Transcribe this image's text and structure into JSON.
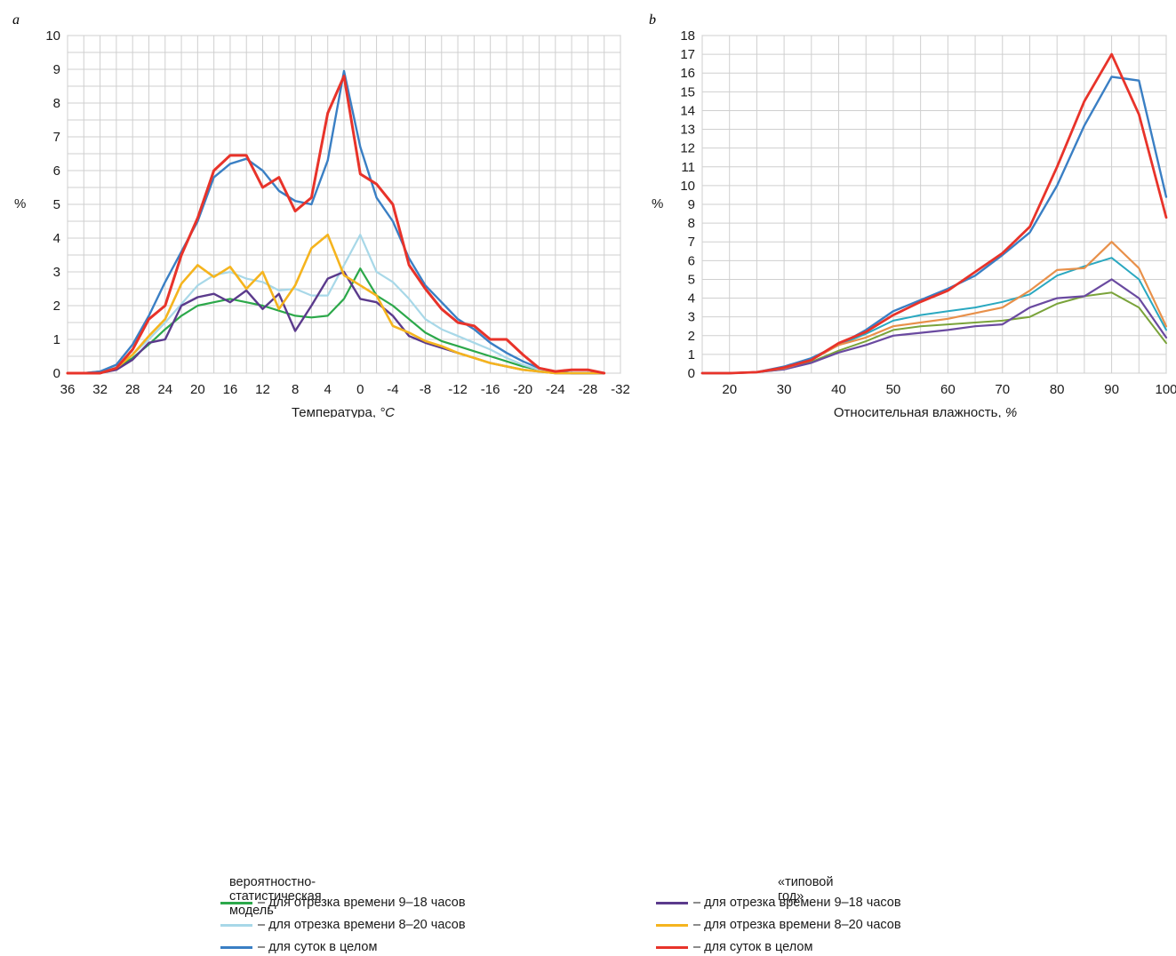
{
  "chart_data": [
    {
      "panel": "a",
      "type": "line",
      "xlabel": "Температура, ",
      "xlabel_unit": "°C",
      "ylabel": "%",
      "xlim": [
        36,
        -32
      ],
      "ylim": [
        0,
        10
      ],
      "x_ticks": [
        "36",
        "32",
        "28",
        "24",
        "20",
        "16",
        "12",
        "8",
        "4",
        "0",
        "-4",
        "-8",
        "-12",
        "-16",
        "-20",
        "-24",
        "-28",
        "-32"
      ],
      "y_ticks": [
        "0",
        "1",
        "2",
        "3",
        "4",
        "5",
        "6",
        "7",
        "8",
        "9",
        "10"
      ],
      "grid": true,
      "series": [
        {
          "name": "вероятностно-статистическая модель – для отрезка времени 9–18 часов",
          "color": "#2ca84a",
          "x": [
            36,
            34,
            32,
            30,
            28,
            26,
            24,
            22,
            20,
            18,
            16,
            14,
            12,
            10,
            8,
            6,
            4,
            2,
            0,
            -2,
            -4,
            -6,
            -8,
            -10,
            -12,
            -14,
            -16,
            -18,
            -20,
            -22,
            -24,
            -26,
            -28,
            -30
          ],
          "y": [
            0,
            0,
            0.05,
            0.15,
            0.45,
            0.85,
            1.3,
            1.7,
            2.0,
            2.1,
            2.2,
            2.1,
            2.0,
            1.85,
            1.7,
            1.65,
            1.7,
            2.2,
            3.1,
            2.3,
            2.0,
            1.6,
            1.2,
            0.95,
            0.8,
            0.65,
            0.5,
            0.35,
            0.2,
            0.1,
            0.05,
            0,
            0,
            0
          ]
        },
        {
          "name": "вероятностно-статистическая модель – для отрезка времени 8–20 часов",
          "color": "#a8d8e8",
          "x": [
            36,
            34,
            32,
            30,
            28,
            26,
            24,
            22,
            20,
            18,
            16,
            14,
            12,
            10,
            8,
            6,
            4,
            2,
            0,
            -2,
            -4,
            -6,
            -8,
            -10,
            -12,
            -14,
            -16,
            -18,
            -20,
            -22,
            -24,
            -26,
            -28,
            -30
          ],
          "y": [
            0,
            0,
            0.05,
            0.2,
            0.55,
            1.0,
            1.5,
            2.05,
            2.6,
            2.9,
            3.0,
            2.8,
            2.7,
            2.45,
            2.5,
            2.3,
            2.3,
            3.2,
            4.1,
            3.0,
            2.7,
            2.2,
            1.6,
            1.3,
            1.1,
            0.9,
            0.7,
            0.45,
            0.25,
            0.1,
            0.05,
            0,
            0,
            0
          ]
        },
        {
          "name": "вероятностно-статистическая модель – для суток в целом",
          "color": "#3a7fc4",
          "x": [
            36,
            34,
            32,
            30,
            28,
            26,
            24,
            22,
            20,
            18,
            16,
            14,
            12,
            10,
            8,
            6,
            4,
            2,
            0,
            -2,
            -4,
            -6,
            -8,
            -10,
            -12,
            -14,
            -16,
            -18,
            -20,
            -22,
            -24,
            -26,
            -28,
            -30
          ],
          "y": [
            0,
            0,
            0.05,
            0.25,
            0.85,
            1.7,
            2.7,
            3.6,
            4.5,
            5.8,
            6.2,
            6.35,
            6.0,
            5.4,
            5.1,
            5.0,
            6.3,
            8.95,
            6.7,
            5.2,
            4.5,
            3.4,
            2.6,
            2.1,
            1.6,
            1.3,
            0.9,
            0.6,
            0.35,
            0.15,
            0.05,
            0,
            0,
            0
          ]
        },
        {
          "name": "«типовой год» – для отрезка времени 9–18 часов",
          "color": "#5b3a8c",
          "x": [
            36,
            34,
            32,
            30,
            28,
            26,
            24,
            22,
            20,
            18,
            16,
            14,
            12,
            10,
            8,
            6,
            4,
            2,
            0,
            -2,
            -4,
            -6,
            -8,
            -10,
            -12,
            -14,
            -16,
            -18,
            -20,
            -22,
            -24,
            -26,
            -28,
            -30
          ],
          "y": [
            0,
            0,
            0,
            0.1,
            0.4,
            0.9,
            1.0,
            2.0,
            2.25,
            2.35,
            2.1,
            2.45,
            1.9,
            2.35,
            1.25,
            2.0,
            2.8,
            3.0,
            2.2,
            2.1,
            1.7,
            1.1,
            0.9,
            0.75,
            0.6,
            0.45,
            0.3,
            0.2,
            0.1,
            0.05,
            0,
            0,
            0,
            0
          ]
        },
        {
          "name": "«типовой год» – для отрезка времени 8–20 часов",
          "color": "#f5b41e",
          "x": [
            36,
            34,
            32,
            30,
            28,
            26,
            24,
            22,
            20,
            18,
            16,
            14,
            12,
            10,
            8,
            6,
            4,
            2,
            0,
            -2,
            -4,
            -6,
            -8,
            -10,
            -12,
            -14,
            -16,
            -18,
            -20,
            -22,
            -24,
            -26,
            -28,
            -30
          ],
          "y": [
            0,
            0,
            0,
            0.15,
            0.55,
            1.1,
            1.6,
            2.65,
            3.2,
            2.85,
            3.15,
            2.5,
            3.0,
            1.9,
            2.6,
            3.7,
            4.1,
            2.9,
            2.6,
            2.3,
            1.4,
            1.2,
            0.95,
            0.8,
            0.6,
            0.45,
            0.3,
            0.2,
            0.1,
            0.05,
            0,
            0,
            0,
            0
          ]
        },
        {
          "name": "«типовой год» – для суток в целом",
          "color": "#e8332a",
          "x": [
            36,
            34,
            32,
            30,
            28,
            26,
            24,
            22,
            20,
            18,
            16,
            14,
            12,
            10,
            8,
            6,
            4,
            2,
            0,
            -2,
            -4,
            -6,
            -8,
            -10,
            -12,
            -14,
            -16,
            -18,
            -20,
            -22,
            -24,
            -26,
            -28,
            -30
          ],
          "y": [
            0,
            0,
            0,
            0.15,
            0.7,
            1.6,
            2.0,
            3.5,
            4.6,
            6.0,
            6.45,
            6.45,
            5.5,
            5.8,
            4.8,
            5.2,
            7.7,
            8.8,
            5.9,
            5.6,
            5.0,
            3.2,
            2.5,
            1.9,
            1.5,
            1.4,
            1.0,
            1.0,
            0.55,
            0.15,
            0.05,
            0.1,
            0.1,
            0
          ]
        }
      ]
    },
    {
      "panel": "b",
      "type": "line",
      "xlabel": "Относительная влажность, ",
      "xlabel_unit": "%",
      "ylabel": "%",
      "xlim": [
        15,
        100
      ],
      "ylim": [
        0,
        18
      ],
      "x_ticks": [
        "20",
        "30",
        "40",
        "50",
        "60",
        "70",
        "80",
        "90",
        "100"
      ],
      "y_ticks": [
        "0",
        "1",
        "2",
        "3",
        "4",
        "5",
        "6",
        "7",
        "8",
        "9",
        "10",
        "11",
        "12",
        "13",
        "14",
        "15",
        "16",
        "17",
        "18"
      ],
      "grid": true,
      "series": [
        {
          "name": "вероятностно-статистическая модель – для отрезка времени 9–18 часов",
          "color": "#7aa33a",
          "x": [
            15,
            20,
            25,
            30,
            35,
            40,
            45,
            50,
            55,
            60,
            65,
            70,
            75,
            80,
            85,
            90,
            95,
            100
          ],
          "y": [
            0,
            0,
            0.05,
            0.2,
            0.6,
            1.2,
            1.7,
            2.3,
            2.5,
            2.6,
            2.7,
            2.8,
            3.0,
            3.7,
            4.1,
            4.3,
            3.5,
            1.6
          ]
        },
        {
          "name": "вероятностно-статистическая модель – для отрезка времени 8–20 часов",
          "color": "#2aa8c0",
          "x": [
            15,
            20,
            25,
            30,
            35,
            40,
            45,
            50,
            55,
            60,
            65,
            70,
            75,
            80,
            85,
            90,
            95,
            100
          ],
          "y": [
            0,
            0,
            0.05,
            0.25,
            0.7,
            1.5,
            2.1,
            2.8,
            3.1,
            3.3,
            3.5,
            3.8,
            4.2,
            5.2,
            5.7,
            6.15,
            5.0,
            2.3
          ]
        },
        {
          "name": "вероятностно-статистическая модель – для суток в целом",
          "color": "#3a7fc4",
          "x": [
            15,
            20,
            25,
            30,
            35,
            40,
            45,
            50,
            55,
            60,
            65,
            70,
            75,
            80,
            85,
            90,
            95,
            100
          ],
          "y": [
            0,
            0,
            0.05,
            0.35,
            0.8,
            1.5,
            2.3,
            3.3,
            3.9,
            4.5,
            5.2,
            6.3,
            7.5,
            10.0,
            13.2,
            15.8,
            15.6,
            9.4
          ]
        },
        {
          "name": "«типовой год» – для отрезка времени 9–18 часов",
          "color": "#6a4aa0",
          "x": [
            15,
            20,
            25,
            30,
            35,
            40,
            45,
            50,
            55,
            60,
            65,
            70,
            75,
            80,
            85,
            90,
            95,
            100
          ],
          "y": [
            0,
            0,
            0.05,
            0.2,
            0.55,
            1.1,
            1.5,
            2.0,
            2.15,
            2.3,
            2.5,
            2.6,
            3.5,
            4.0,
            4.1,
            5.0,
            4.0,
            1.9
          ]
        },
        {
          "name": "«типовой год» – для отрезка времени 8–20 часов",
          "color": "#e8904a",
          "x": [
            15,
            20,
            25,
            30,
            35,
            40,
            45,
            50,
            55,
            60,
            65,
            70,
            75,
            80,
            85,
            90,
            95,
            100
          ],
          "y": [
            0,
            0,
            0.05,
            0.25,
            0.7,
            1.5,
            1.9,
            2.5,
            2.7,
            2.9,
            3.2,
            3.5,
            4.4,
            5.5,
            5.6,
            7.0,
            5.6,
            2.5
          ]
        },
        {
          "name": "«типовой год» – для суток в целом",
          "color": "#e8332a",
          "x": [
            15,
            20,
            25,
            30,
            35,
            40,
            45,
            50,
            55,
            60,
            65,
            70,
            75,
            80,
            85,
            90,
            95,
            100
          ],
          "y": [
            0,
            0,
            0.05,
            0.3,
            0.7,
            1.6,
            2.2,
            3.1,
            3.8,
            4.4,
            5.4,
            6.4,
            7.8,
            11.0,
            14.5,
            17.0,
            13.8,
            8.3
          ]
        }
      ]
    }
  ],
  "legend": {
    "left_heading": "вероятностно-статистическая модель",
    "right_heading": "«типовой год»",
    "left_items": [
      {
        "label": "– для отрезка времени 9–18 часов",
        "color": "#2ca84a"
      },
      {
        "label": "– для отрезка времени 8–20 часов",
        "color": "#a8d8e8"
      },
      {
        "label": "– для суток в целом",
        "color": "#3a7fc4"
      }
    ],
    "right_items": [
      {
        "label": "– для отрезка времени 9–18 часов",
        "color": "#5b3a8c"
      },
      {
        "label": "– для отрезка времени 8–20 часов",
        "color": "#f5b41e"
      },
      {
        "label": "–  для суток в целом",
        "color": "#e8332a"
      }
    ]
  }
}
